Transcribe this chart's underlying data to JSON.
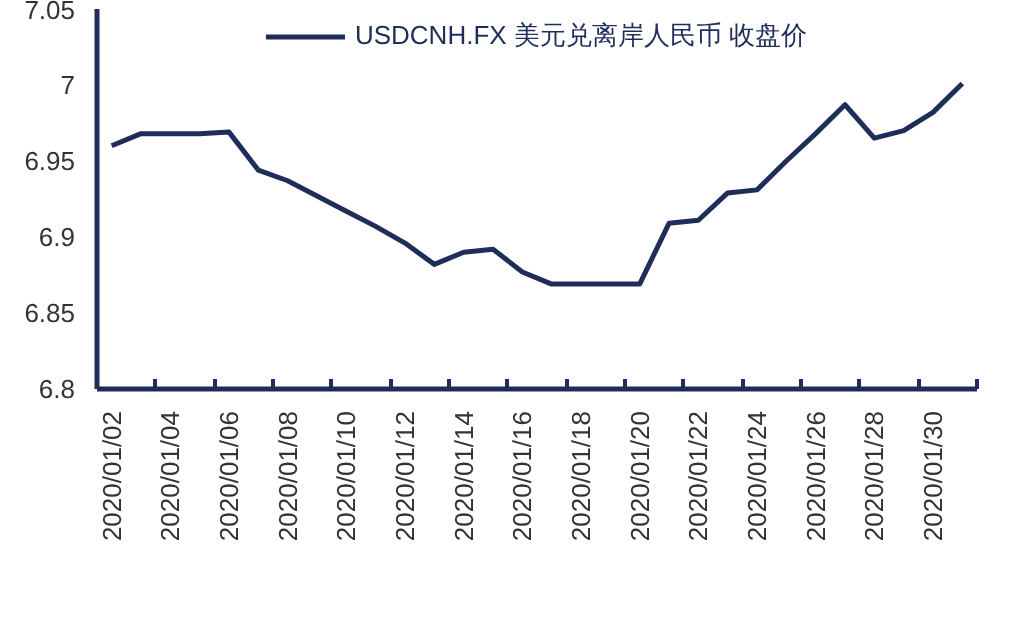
{
  "chart_data": {
    "type": "line",
    "categories": [
      "2020/01/02",
      null,
      "2020/01/04",
      null,
      "2020/01/06",
      null,
      "2020/01/08",
      null,
      "2020/01/10",
      null,
      "2020/01/12",
      null,
      "2020/01/14",
      null,
      "2020/01/16",
      null,
      "2020/01/18",
      null,
      "2020/01/20",
      null,
      "2020/01/22",
      null,
      "2020/01/24",
      null,
      "2020/01/26",
      null,
      "2020/01/28",
      null,
      "2020/01/30",
      null
    ],
    "series": [
      {
        "name": "USDCNH.FX 美元兑离岸人民币 收盘价",
        "color": "#1f2d5a",
        "values": [
          6.96,
          6.968,
          6.968,
          6.968,
          6.969,
          6.944,
          6.937,
          6.927,
          6.917,
          6.907,
          6.896,
          6.882,
          6.89,
          6.892,
          6.877,
          6.869,
          6.869,
          6.869,
          6.869,
          6.909,
          6.911,
          6.929,
          6.931,
          6.95,
          6.968,
          6.987,
          6.965,
          6.97,
          6.982,
          7.001
        ]
      }
    ],
    "ylim": [
      6.8,
      7.05
    ],
    "yticks": [
      6.8,
      6.85,
      6.9,
      6.95,
      7,
      7.05
    ],
    "legend": "top"
  }
}
